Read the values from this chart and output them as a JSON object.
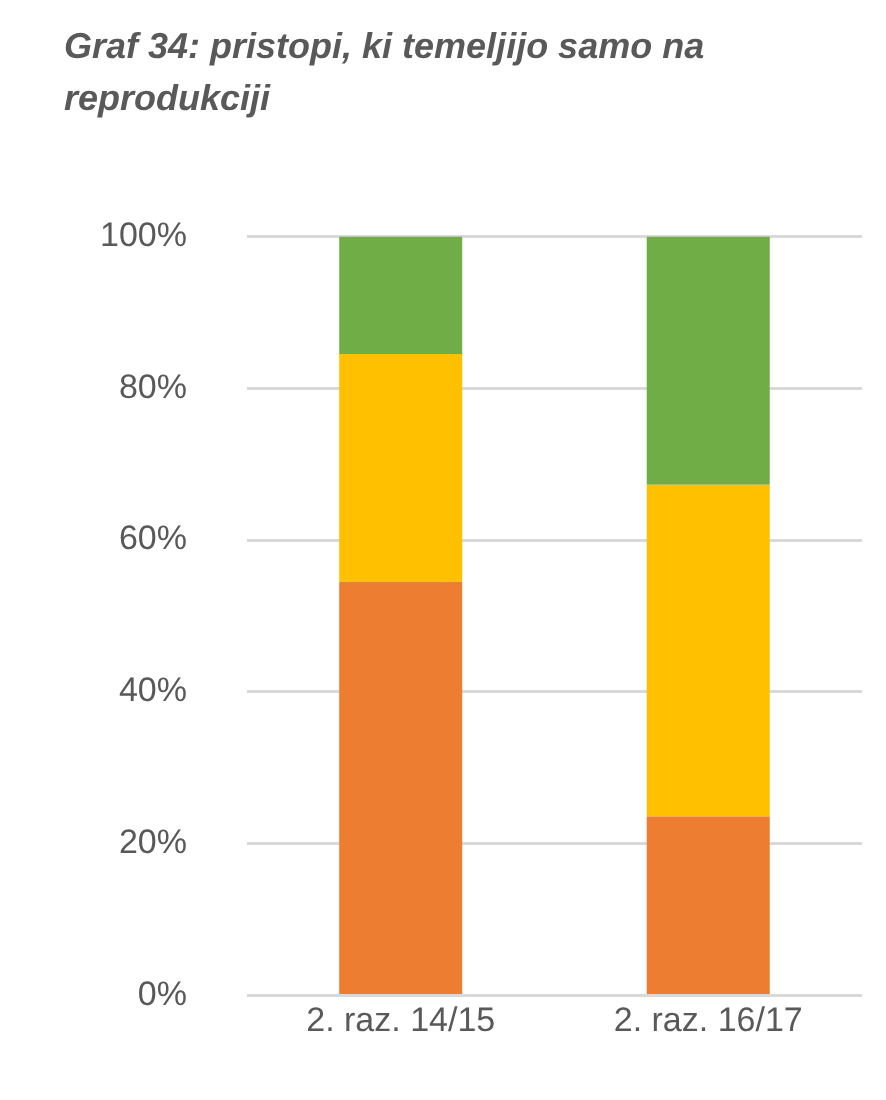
{
  "chart_data": {
    "type": "bar",
    "title": "Graf 34: pristopi, ki temeljijo samo na reprodukciji",
    "categories": [
      "2. raz. 14/15",
      "2. raz. 16/17"
    ],
    "stacked": true,
    "series": [
      {
        "color": "#ed7d31",
        "values": [
          54.5,
          23.6
        ]
      },
      {
        "color": "#ffc000",
        "values": [
          30,
          43.7
        ]
      },
      {
        "color": "#70ad47",
        "values": [
          15.5,
          32.7
        ]
      }
    ],
    "ylim": [
      0,
      100
    ],
    "yticks": [
      {
        "value": 0,
        "label": "0%"
      },
      {
        "value": 20,
        "label": "20%"
      },
      {
        "value": 40,
        "label": "40%"
      },
      {
        "value": 60,
        "label": "60%"
      },
      {
        "value": 80,
        "label": "80%"
      },
      {
        "value": 100,
        "label": "100%"
      }
    ],
    "grid": "y",
    "legend": false
  }
}
